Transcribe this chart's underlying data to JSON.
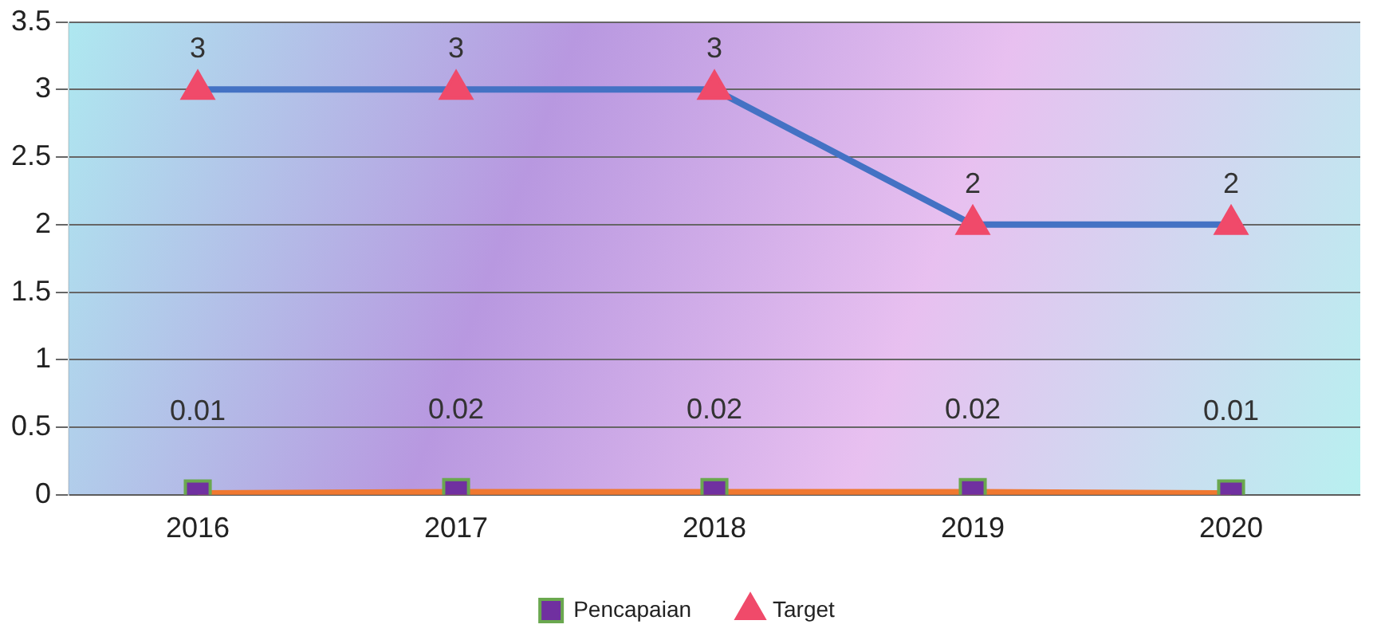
{
  "chart_data": {
    "type": "line",
    "categories": [
      "2016",
      "2017",
      "2018",
      "2019",
      "2020"
    ],
    "series": [
      {
        "name": "Pencapaian",
        "color": "#f07830",
        "values": [
          0.01,
          0.02,
          0.02,
          0.02,
          0.01
        ],
        "marker": "square"
      },
      {
        "name": "Target",
        "color": "#4472c4",
        "values": [
          3,
          3,
          3,
          2,
          2
        ],
        "marker": "triangle"
      }
    ],
    "ylim": [
      0,
      3.5
    ],
    "yticks": [
      0,
      0.5,
      1,
      1.5,
      2,
      2.5,
      3,
      3.5
    ],
    "grid": "y",
    "legend": "bottom",
    "data_labels": true,
    "line_style": "solid"
  }
}
